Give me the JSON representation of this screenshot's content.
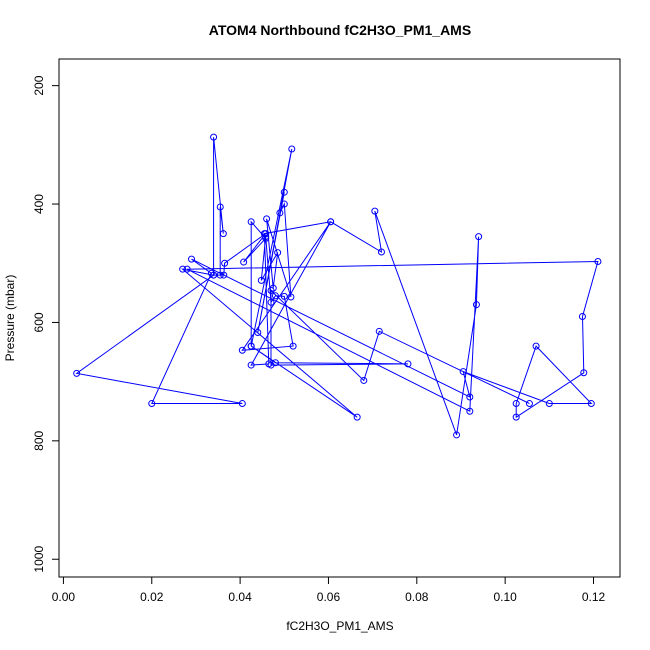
{
  "chart_data": {
    "type": "line",
    "title": "ATOM4 Northbound fC2H3O_PM1_AMS",
    "xlabel": "fC2H3O_PM1_AMS",
    "ylabel": "Pressure (mbar)",
    "xlim": [
      -0.001,
      0.126
    ],
    "ylim": [
      1030,
      155
    ],
    "y_reversed": true,
    "x_ticks": [
      0.0,
      0.02,
      0.04,
      0.06,
      0.08,
      0.1,
      0.12
    ],
    "x_tick_labels": [
      "0.00",
      "0.02",
      "0.04",
      "0.06",
      "0.08",
      "0.10",
      "0.12"
    ],
    "y_ticks": [
      200,
      400,
      600,
      800,
      1000
    ],
    "y_tick_labels": [
      "200",
      "400",
      "600",
      "800",
      "1000"
    ],
    "grid": false,
    "legend": "none",
    "line_color": "#0000ff",
    "marker": "open-circle",
    "series": [
      {
        "x": [
          0.0355,
          0.0355,
          0.0362,
          0.034,
          0.034,
          0.0363,
          0.0365,
          0.0458,
          0.0408,
          0.0458,
          0.0425,
          0.0425,
          0.0517,
          0.044,
          0.05,
          0.049,
          0.05,
          0.0515,
          0.046,
          0.0475,
          0.0485,
          0.0448,
          0.0458,
          0.047,
          0.048,
          0.05,
          0.052,
          0.0405,
          0.0605,
          0.0425,
          0.0465,
          0.0455,
          0.0605,
          0.072,
          0.0705,
          0.089,
          0.0935,
          0.094,
          0.092,
          0.028,
          0.121,
          0.1175,
          0.1178,
          0.1025,
          0.1025,
          0.107,
          0.1195,
          0.11,
          0.0905,
          0.092,
          0.029,
          0.0335,
          0.02,
          0.0405,
          0.003,
          0.034,
          0.027,
          0.0665,
          0.0425,
          0.048,
          0.078,
          0.047,
          0.047,
          0.068,
          0.0715,
          0.1055
        ],
        "y": [
          520,
          405,
          450,
          287,
          520,
          520,
          500,
          450,
          498,
          458,
          430,
          640,
          307,
          617,
          380,
          415,
          400,
          557,
          425,
          542,
          482,
          529,
          455,
          566,
          555,
          556,
          640,
          647,
          430,
          672,
          670,
          450,
          430,
          481,
          412,
          790,
          570,
          455,
          750,
          510,
          497,
          590,
          685,
          760,
          737,
          640,
          737,
          737,
          683,
          726,
          493,
          517,
          737,
          737,
          686,
          520,
          510,
          760,
          640,
          668,
          670,
          672,
          546,
          698,
          615,
          737
        ]
      }
    ]
  }
}
